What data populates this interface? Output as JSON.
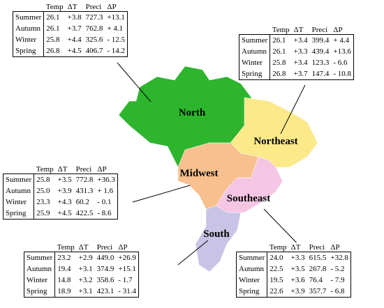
{
  "table_header": [
    "Temp",
    "ΔT",
    "Preci",
    "ΔP"
  ],
  "regions": [
    {
      "name": "North",
      "rows": [
        [
          "Summer",
          "26.1",
          "+3.8",
          "727.3",
          "+13.1"
        ],
        [
          "Autumn",
          "26.1",
          "+3.7",
          "762.8",
          "+ 4.1"
        ],
        [
          "Winter",
          "25.8",
          "+4.4",
          "325.6",
          "- 12.5"
        ],
        [
          "Spring",
          "26.8",
          "+4.5",
          "406.7",
          "- 14.2"
        ]
      ]
    },
    {
      "name": "Northeast",
      "rows": [
        [
          "Summer",
          "26.1",
          "+3.4",
          "399.4",
          "+ 4.4"
        ],
        [
          "Autumn",
          "26.1",
          "+3.3",
          "439.4",
          "+13.6"
        ],
        [
          "Winter",
          "25.8",
          "+3.4",
          "123.3",
          "- 6.6"
        ],
        [
          "Spring",
          "26.8",
          "+3.7",
          "147.4",
          "- 10.8"
        ]
      ]
    },
    {
      "name": "Midwest",
      "rows": [
        [
          "Summer",
          "25.8",
          "+3.5",
          "772.8",
          "+36.3"
        ],
        [
          "Autumn",
          "25.0",
          "+3.9",
          "431.3",
          "+ 1.6"
        ],
        [
          "Winter",
          "23.3",
          "+4.3",
          "60.2",
          "- 0.1"
        ],
        [
          "Spring",
          "25.9",
          "+4.5",
          "422.5",
          "- 8.6"
        ]
      ]
    },
    {
      "name": "Southeast",
      "rows": [
        [
          "Summer",
          "24.0",
          "+3.3",
          "615.5",
          "+32.8"
        ],
        [
          "Autumn",
          "22.5",
          "+3.5",
          "267.8",
          "- 5.2"
        ],
        [
          "Winter",
          "19.5",
          "+3.6",
          "76.4",
          "- 7.9"
        ],
        [
          "Spring",
          "22.6",
          "+3.9",
          "357.7",
          "- 6.8"
        ]
      ]
    },
    {
      "name": "South",
      "rows": [
        [
          "Summer",
          "23.2",
          "+2.9",
          "449.0",
          "+26.9"
        ],
        [
          "Autumn",
          "19.4",
          "+3.1",
          "374.9",
          "+15.1"
        ],
        [
          "Winter",
          "14.8",
          "+3.2",
          "358.6",
          "- 1.7"
        ],
        [
          "Spring",
          "18.9",
          "+3.1",
          "423.1",
          "- 31.4"
        ]
      ]
    }
  ]
}
